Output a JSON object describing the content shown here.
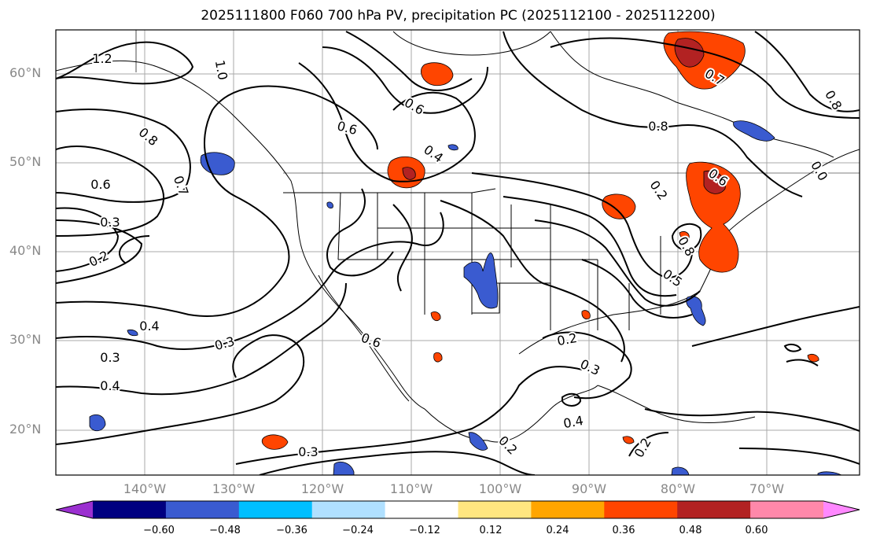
{
  "title": "2025111800 F060 700 hPa PV, precipitation PC (2025112100 - 2025112200)",
  "lat_labels": [
    "60°N",
    "50°N",
    "40°N",
    "30°N",
    "20°N"
  ],
  "lon_labels": [
    "140°W",
    "130°W",
    "120°W",
    "110°W",
    "100°W",
    "90°W",
    "80°W",
    "70°W"
  ],
  "contour_labels": [
    "1.2",
    "1.0",
    "0.8",
    "0.6",
    "0.7",
    "0.3",
    "0.2",
    "0.4",
    "0.3",
    "0.4",
    "0.6",
    "0.6",
    "0.4",
    "0.6",
    "0.3",
    "0.2",
    "0.3",
    "0.4",
    "0.2",
    "0.8",
    "0.7",
    "0.8",
    "0.6",
    "0.8",
    "0.5",
    "0.2",
    "0.0",
    "0.2",
    "0.3"
  ],
  "colorbar": {
    "ticks": [
      "−0.60",
      "−0.48",
      "−0.36",
      "−0.24",
      "−0.12",
      "0.12",
      "0.24",
      "0.36",
      "0.48",
      "0.60"
    ],
    "colors": [
      "#9b30d0",
      "#000080",
      "#3a5bd0",
      "#00bfff",
      "#b0e0ff",
      "#ffffff",
      "#ffe680",
      "#ffa500",
      "#ff4500",
      "#b22222",
      "#ff88aa",
      "#ff88ff"
    ]
  }
}
